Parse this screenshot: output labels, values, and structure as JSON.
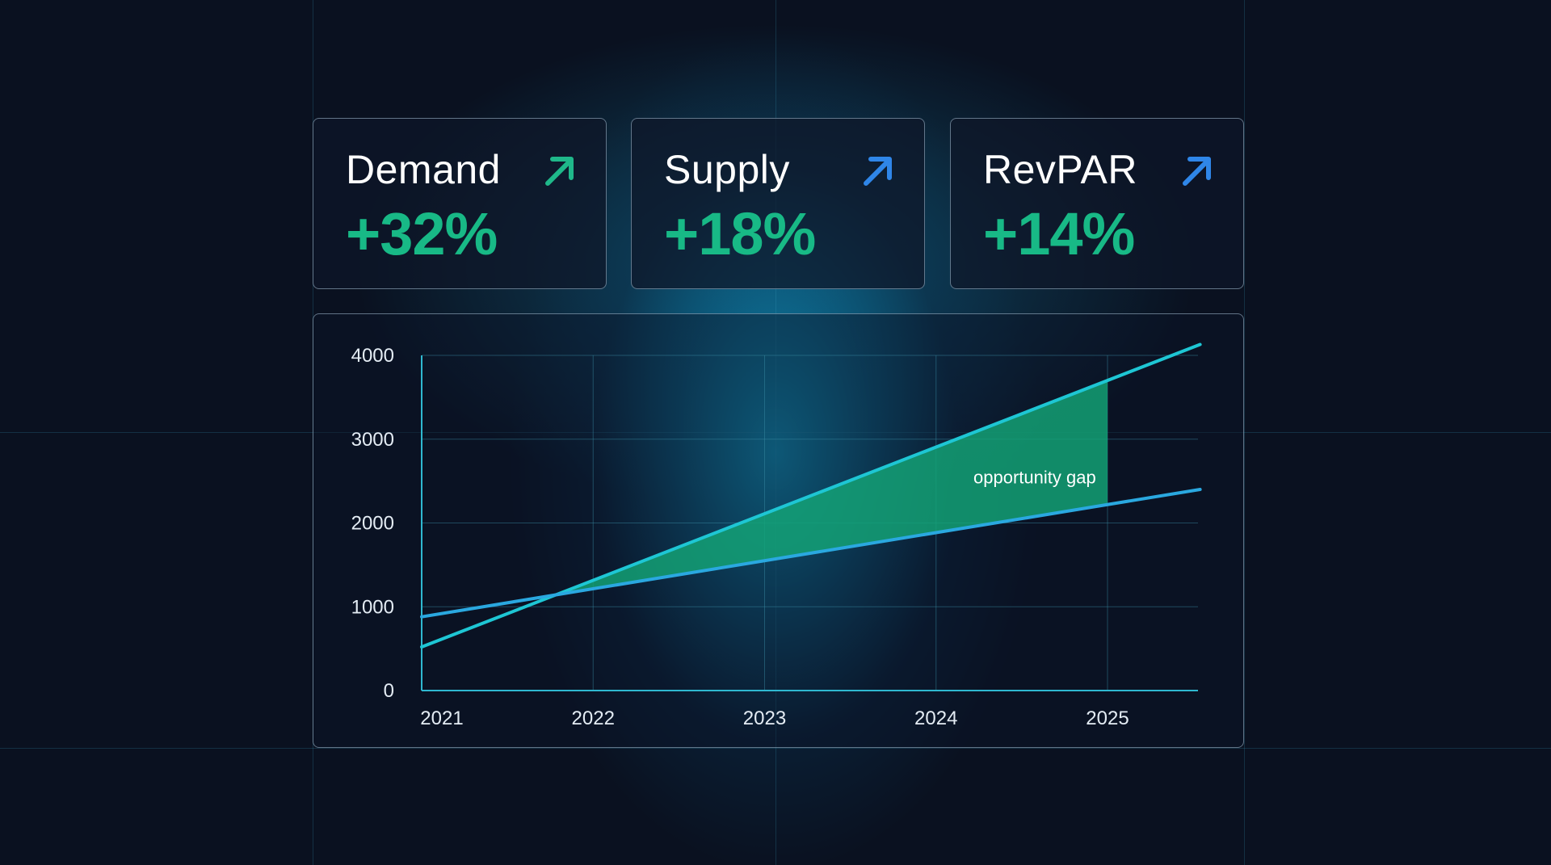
{
  "cards": [
    {
      "label": "Demand",
      "value": "+32%",
      "arrow_icon": "arrow-up-right-icon",
      "arrow_color": "#1fb88a"
    },
    {
      "label": "Supply",
      "value": "+18%",
      "arrow_icon": "arrow-up-right-icon",
      "arrow_color": "#2f86e8"
    },
    {
      "label": "RevPAR",
      "value": "+14%",
      "arrow_icon": "arrow-up-right-icon",
      "arrow_color": "#2f86e8"
    }
  ],
  "colors": {
    "background": "#0a1120",
    "value_green": "#18b986",
    "demand_line": "#1ec6d4",
    "supply_line": "#2aa8e0",
    "gap_fill": "#14a678",
    "grid": "#3a8fa6"
  },
  "chart_data": {
    "type": "line",
    "title": "",
    "xlabel": "",
    "ylabel": "",
    "x_ticks": [
      "2021",
      "2022",
      "2023",
      "2024",
      "2025"
    ],
    "y_ticks": [
      "0",
      "1000",
      "2000",
      "3000",
      "4000"
    ],
    "xlim": [
      2021,
      2025.54
    ],
    "ylim": [
      0,
      4000
    ],
    "grid": true,
    "legend": "none",
    "series": [
      {
        "x": [
          2021,
          2025.54
        ],
        "y": [
          520,
          4130
        ]
      },
      {
        "x": [
          2021,
          2025.54
        ],
        "y": [
          880,
          2400
        ]
      }
    ],
    "annotation": {
      "text": "opportunity gap",
      "x": 2024.5,
      "y": 2550
    },
    "gap_region": {
      "x_start": 2022,
      "x_end": 2025
    }
  }
}
